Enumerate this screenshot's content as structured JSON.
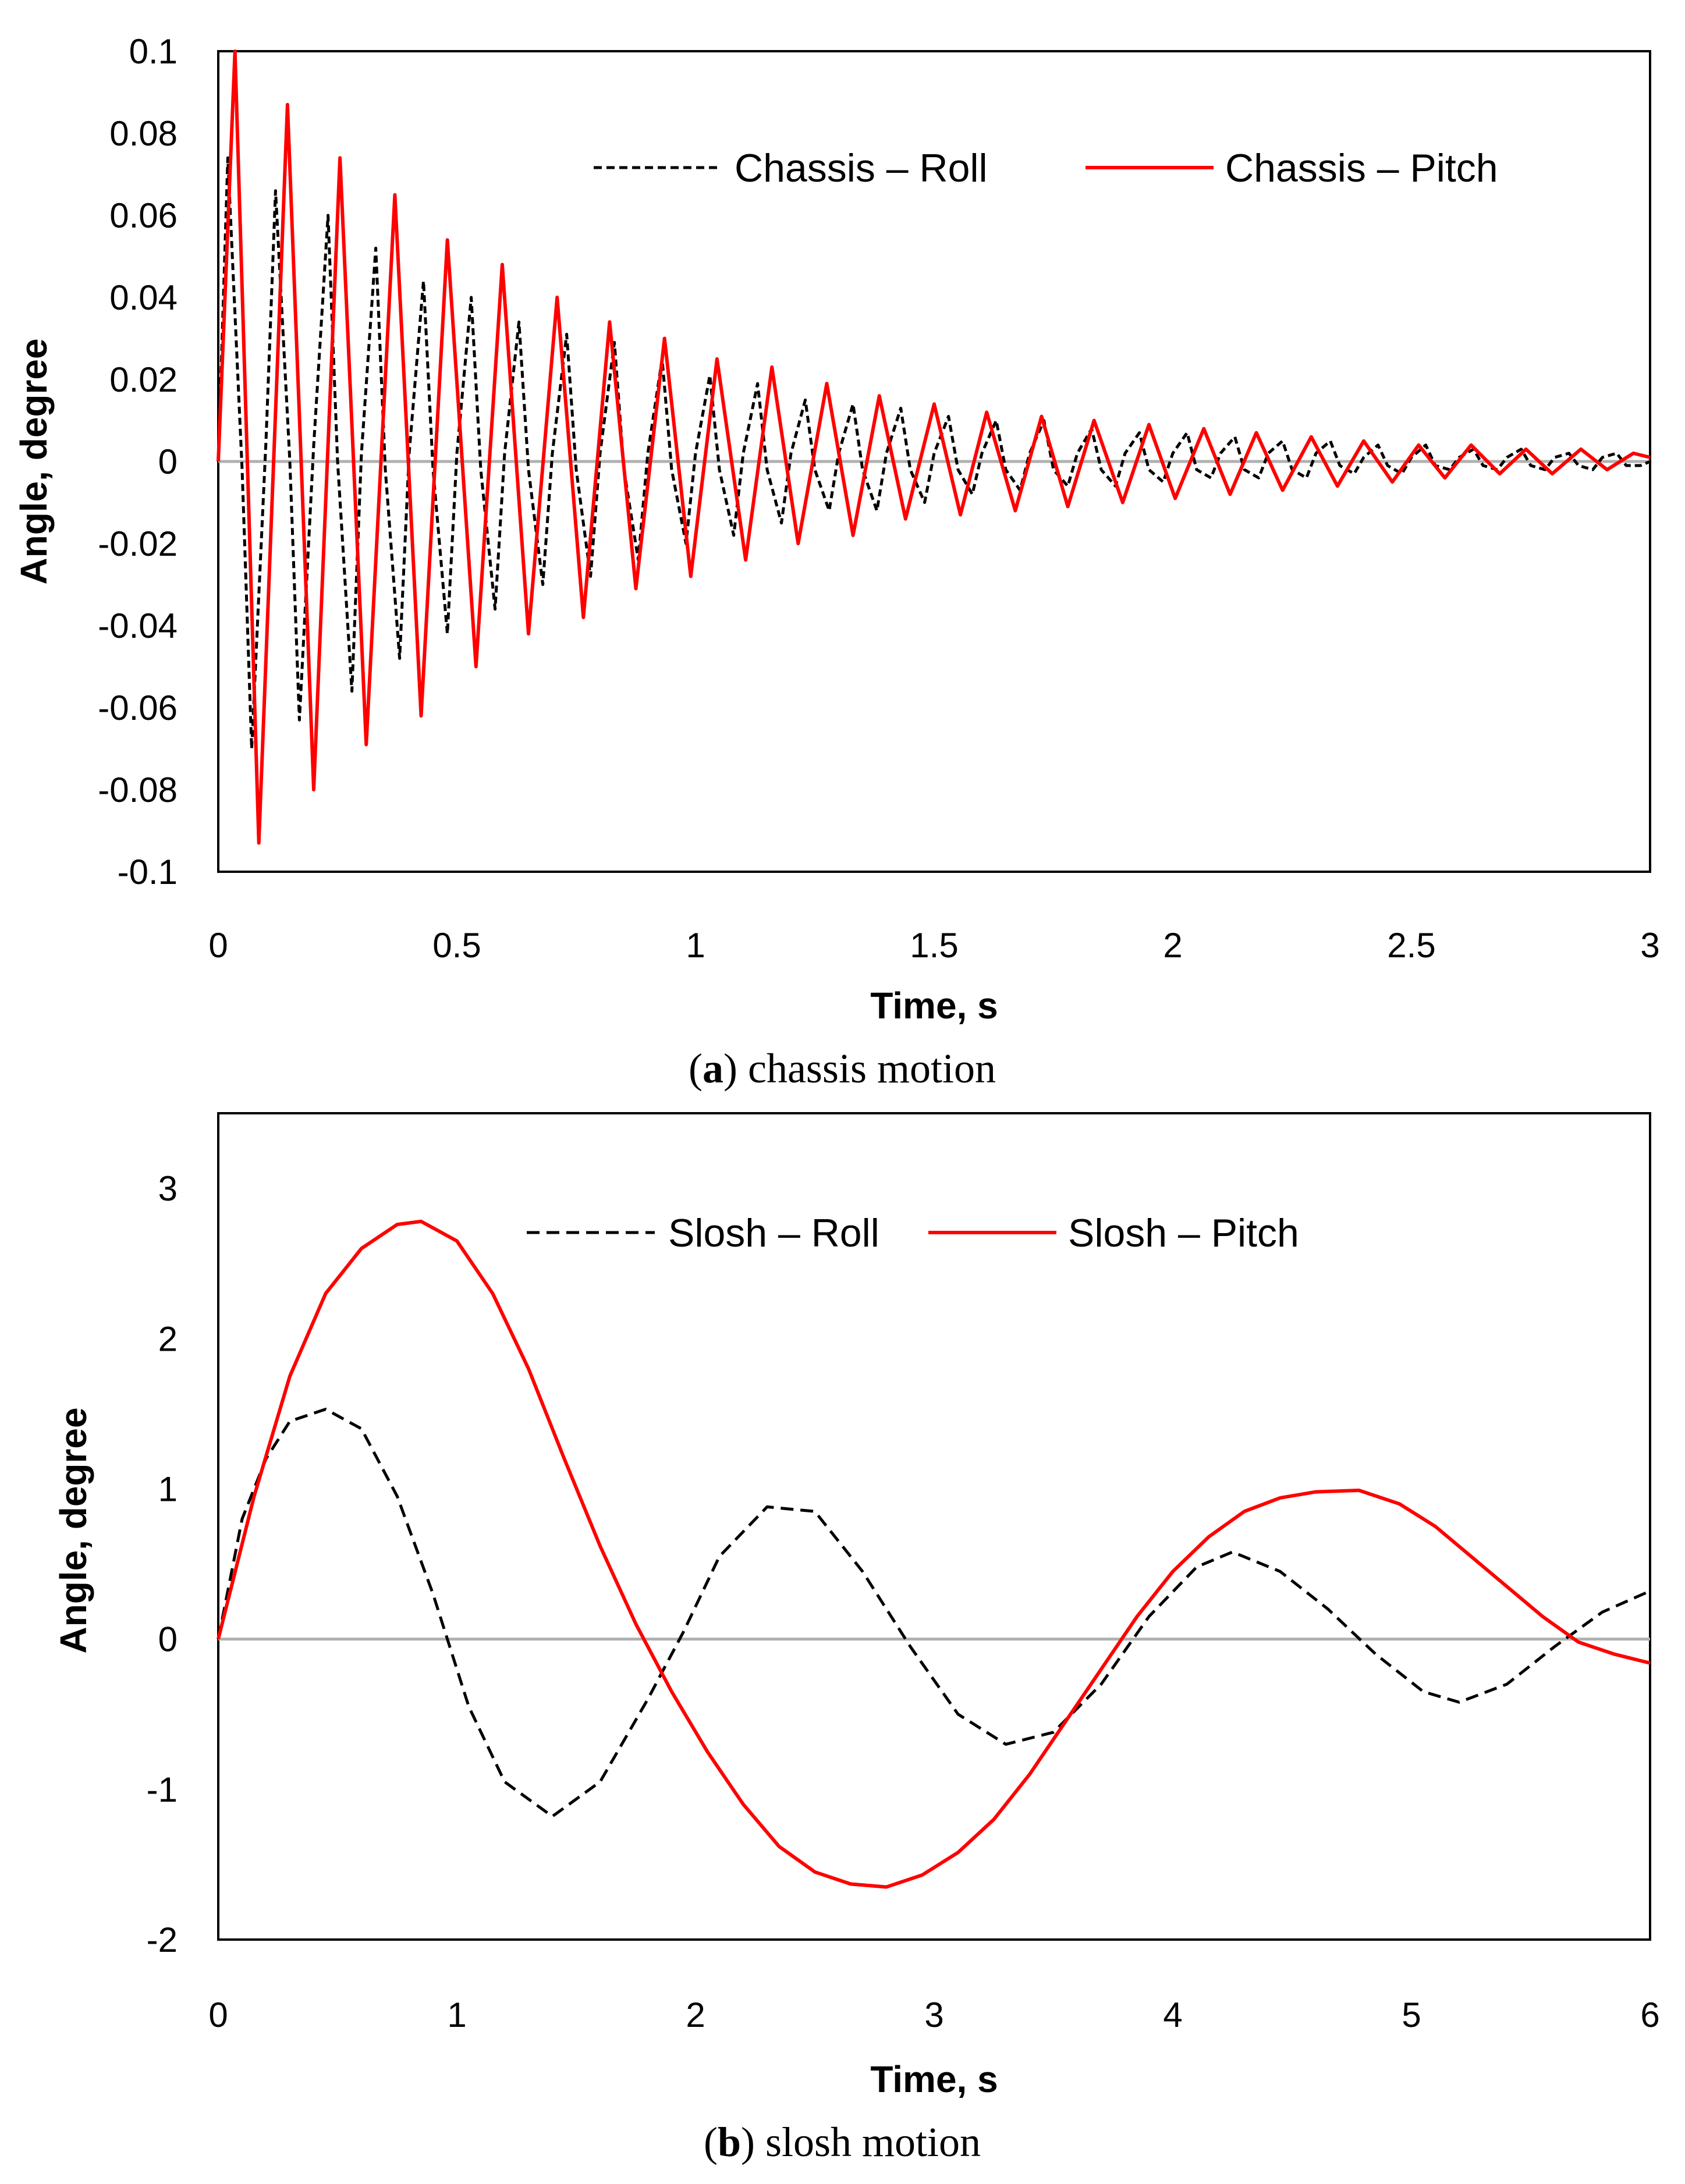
{
  "chart_data": [
    {
      "type": "line",
      "caption_letter": "a",
      "caption_text": "chassis motion",
      "xlabel": "Time, s",
      "ylabel": "Angle, degree",
      "xlim": [
        0,
        3
      ],
      "ylim": [
        -0.1,
        0.1
      ],
      "xticks": [
        "0",
        "0.5",
        "1",
        "1.5",
        "2",
        "2.5",
        "3"
      ],
      "yticks": [
        "0.1",
        "0.08",
        "0.06",
        "0.04",
        "0.02",
        "0",
        "-0.02",
        "-0.04",
        "-0.06",
        "-0.08",
        "-0.1"
      ],
      "series": [
        {
          "name": "Chassis – Roll",
          "style": "dashed",
          "color": "#000000",
          "x": [
            0,
            0.02,
            0.05,
            0.07,
            0.1,
            0.12,
            0.15,
            0.17,
            0.2,
            0.23,
            0.25,
            0.28,
            0.3,
            0.33,
            0.35,
            0.38,
            0.4,
            0.43,
            0.45,
            0.48,
            0.5,
            0.53,
            0.55,
            0.58,
            0.6,
            0.63,
            0.65,
            0.68,
            0.7,
            0.73,
            0.75,
            0.78,
            0.8,
            0.83,
            0.85,
            0.88,
            0.9,
            0.93,
            0.95,
            0.98,
            1.0,
            1.03,
            1.05,
            1.08,
            1.1,
            1.13,
            1.15,
            1.18,
            1.2,
            1.23,
            1.25,
            1.28,
            1.3,
            1.33,
            1.35,
            1.38,
            1.4,
            1.43,
            1.45,
            1.48,
            1.5,
            1.53,
            1.55,
            1.58,
            1.6,
            1.63,
            1.65,
            1.68,
            1.7,
            1.73,
            1.75,
            1.78,
            1.8,
            1.83,
            1.85,
            1.88,
            1.9,
            1.93,
            1.95,
            1.98,
            2.0,
            2.03,
            2.05,
            2.08,
            2.1,
            2.13,
            2.15,
            2.18,
            2.2,
            2.23,
            2.25,
            2.28,
            2.3,
            2.33,
            2.35,
            2.38,
            2.4,
            2.43,
            2.45,
            2.48,
            2.5,
            2.53,
            2.55,
            2.58,
            2.6,
            2.63,
            2.65,
            2.68,
            2.7,
            2.73,
            2.75,
            2.78,
            2.8,
            2.83,
            2.85,
            2.88,
            2.9,
            2.93,
            2.95,
            2.98,
            3.0
          ],
          "y": [
            0.0,
            0.074,
            -0.002,
            -0.07,
            0.005,
            0.066,
            0.0,
            -0.063,
            0.004,
            0.06,
            0.0,
            -0.056,
            0.002,
            0.052,
            -0.002,
            -0.048,
            0.002,
            0.044,
            -0.002,
            -0.042,
            0.002,
            0.04,
            -0.002,
            -0.036,
            0.002,
            0.034,
            -0.002,
            -0.03,
            0.002,
            0.031,
            -0.002,
            -0.028,
            0.002,
            0.029,
            -0.002,
            -0.024,
            0.002,
            0.025,
            -0.002,
            -0.02,
            0.002,
            0.021,
            -0.002,
            -0.018,
            0.002,
            0.019,
            -0.002,
            -0.015,
            0.002,
            0.015,
            -0.002,
            -0.012,
            0.002,
            0.014,
            -0.002,
            -0.012,
            0.002,
            0.013,
            -0.002,
            -0.01,
            0.002,
            0.011,
            -0.002,
            -0.008,
            0.002,
            0.01,
            -0.002,
            -0.007,
            0.002,
            0.01,
            -0.002,
            -0.006,
            0.002,
            0.008,
            -0.002,
            -0.006,
            0.002,
            0.007,
            -0.002,
            -0.005,
            0.002,
            0.007,
            -0.002,
            -0.004,
            0.002,
            0.006,
            -0.002,
            -0.004,
            0.002,
            0.005,
            -0.002,
            -0.004,
            0.002,
            0.005,
            -0.001,
            -0.003,
            0.001,
            0.004,
            -0.001,
            -0.003,
            0.001,
            0.004,
            -0.001,
            -0.002,
            0.001,
            0.003,
            -0.001,
            -0.002,
            0.001,
            0.003,
            -0.001,
            -0.002,
            0.001,
            0.002,
            -0.001,
            -0.002,
            0.001,
            0.002,
            -0.001,
            -0.001,
            0.0
          ]
        },
        {
          "name": "Chassis – Pitch",
          "style": "solid",
          "color": "#ff0000",
          "x": [
            0,
            0.035,
            0.085,
            0.145,
            0.2,
            0.255,
            0.31,
            0.37,
            0.425,
            0.48,
            0.54,
            0.595,
            0.65,
            0.71,
            0.765,
            0.82,
            0.875,
            0.935,
            0.99,
            1.045,
            1.105,
            1.16,
            1.215,
            1.275,
            1.33,
            1.385,
            1.44,
            1.5,
            1.555,
            1.61,
            1.67,
            1.725,
            1.78,
            1.835,
            1.895,
            1.95,
            2.005,
            2.065,
            2.12,
            2.175,
            2.23,
            2.29,
            2.345,
            2.4,
            2.46,
            2.515,
            2.57,
            2.625,
            2.685,
            2.74,
            2.795,
            2.855,
            2.91,
            2.965,
            3.0
          ],
          "y": [
            0.0,
            0.1,
            -0.093,
            0.087,
            -0.08,
            0.074,
            -0.069,
            0.065,
            -0.062,
            0.054,
            -0.05,
            0.048,
            -0.042,
            0.04,
            -0.038,
            0.034,
            -0.031,
            0.03,
            -0.028,
            0.025,
            -0.024,
            0.023,
            -0.02,
            0.019,
            -0.018,
            0.016,
            -0.014,
            0.014,
            -0.013,
            0.012,
            -0.012,
            0.011,
            -0.011,
            0.01,
            -0.01,
            0.009,
            -0.009,
            0.008,
            -0.008,
            0.007,
            -0.007,
            0.006,
            -0.006,
            0.005,
            -0.005,
            0.004,
            -0.004,
            0.004,
            -0.003,
            0.003,
            -0.003,
            0.003,
            -0.002,
            0.002,
            0.001
          ]
        }
      ]
    },
    {
      "type": "line",
      "caption_letter": "b",
      "caption_text": "slosh motion",
      "xlabel": "Time, s",
      "ylabel": "Angle, degree",
      "xlim": [
        0,
        6
      ],
      "ylim": [
        -2,
        3.5
      ],
      "xticks": [
        "0",
        "1",
        "2",
        "3",
        "4",
        "5",
        "6"
      ],
      "yticks": [
        "3",
        "2",
        "1",
        "0",
        "-1",
        "-2"
      ],
      "series": [
        {
          "name": "Slosh – Roll",
          "style": "dashed",
          "color": "#000000",
          "x": [
            0,
            0.1,
            0.2,
            0.3,
            0.45,
            0.6,
            0.75,
            0.9,
            1.05,
            1.2,
            1.4,
            1.6,
            1.8,
            1.95,
            2.1,
            2.3,
            2.5,
            2.7,
            2.9,
            3.1,
            3.3,
            3.5,
            3.7,
            3.9,
            4.1,
            4.25,
            4.45,
            4.65,
            4.85,
            5.05,
            5.2,
            5.4,
            5.6,
            5.8,
            6.0
          ],
          "y": [
            0.0,
            0.8,
            1.2,
            1.45,
            1.53,
            1.4,
            0.95,
            0.3,
            -0.45,
            -0.95,
            -1.18,
            -0.95,
            -0.4,
            0.05,
            0.55,
            0.88,
            0.85,
            0.45,
            -0.05,
            -0.5,
            -0.7,
            -0.62,
            -0.3,
            0.15,
            0.48,
            0.58,
            0.45,
            0.2,
            -0.1,
            -0.35,
            -0.42,
            -0.3,
            -0.05,
            0.18,
            0.32
          ]
        },
        {
          "name": "Slosh – Pitch",
          "style": "solid",
          "color": "#ff0000",
          "x": [
            0,
            0.15,
            0.3,
            0.45,
            0.6,
            0.75,
            0.85,
            1.0,
            1.15,
            1.3,
            1.45,
            1.6,
            1.75,
            1.9,
            2.05,
            2.2,
            2.35,
            2.5,
            2.65,
            2.8,
            2.95,
            3.1,
            3.25,
            3.4,
            3.55,
            3.7,
            3.85,
            4.0,
            4.15,
            4.3,
            4.45,
            4.6,
            4.78,
            4.95,
            5.1,
            5.25,
            5.4,
            5.55,
            5.7,
            5.85,
            6.0
          ],
          "y": [
            0.0,
            0.95,
            1.75,
            2.3,
            2.6,
            2.76,
            2.78,
            2.65,
            2.3,
            1.8,
            1.2,
            0.62,
            0.1,
            -0.35,
            -0.75,
            -1.1,
            -1.38,
            -1.55,
            -1.63,
            -1.65,
            -1.57,
            -1.42,
            -1.2,
            -0.9,
            -0.55,
            -0.2,
            0.15,
            0.45,
            0.68,
            0.85,
            0.94,
            0.98,
            0.99,
            0.9,
            0.75,
            0.55,
            0.35,
            0.15,
            -0.02,
            -0.1,
            -0.16
          ]
        }
      ]
    }
  ]
}
